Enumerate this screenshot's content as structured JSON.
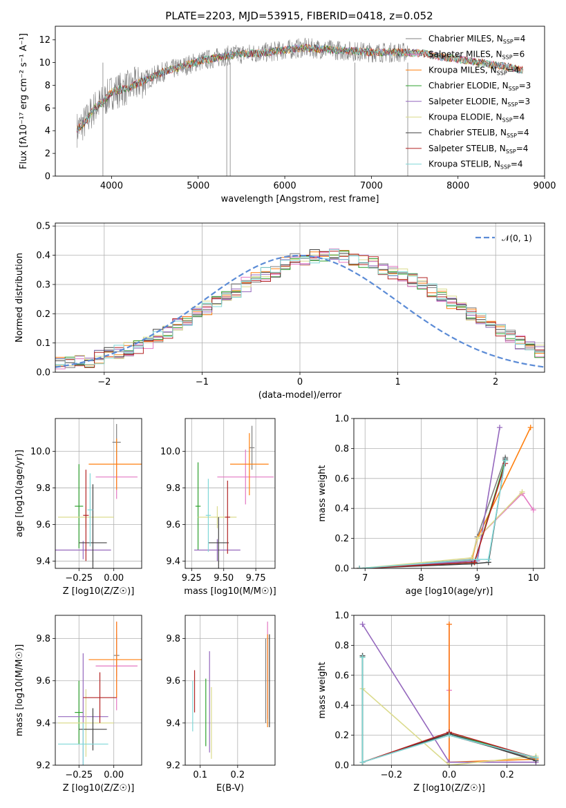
{
  "figure_title": "PLATE=2203, MJD=53915, FIBERID=0418, z=0.052",
  "colors": [
    "#7f7f7f",
    "#e377c2",
    "#ff7f0e",
    "#2ca02c",
    "#9467bd",
    "#dbdb8d",
    "#404040",
    "#b22222",
    "#7fd7d7"
  ],
  "chart_data": [
    {
      "id": "spectrum",
      "type": "line",
      "title": "PLATE=2203, MJD=53915, FIBERID=0418, z=0.052",
      "xlabel": "wavelength [Angstrom, rest frame]",
      "ylabel": "Flux [fλ10⁻¹⁷ erg cm⁻² s⁻¹ A⁻¹]",
      "xlim": [
        3350,
        9000
      ],
      "ylim": [
        0,
        13.2
      ],
      "xticks": [
        "4000",
        "5000",
        "6000",
        "7000",
        "8000",
        "9000"
      ],
      "yticks": [
        "0",
        "2",
        "4",
        "6",
        "8",
        "10",
        "12"
      ],
      "grid": false,
      "legend_position": "right",
      "continuum_x": [
        3600,
        3700,
        3800,
        3900,
        4000,
        4200,
        4400,
        4600,
        4800,
        5000,
        5200,
        5400,
        5600,
        5800,
        6000,
        6200,
        6400,
        6600,
        6800,
        7000,
        7200,
        7400,
        7600,
        7800,
        8000,
        8200,
        8400,
        8600,
        8750
      ],
      "continuum_y": [
        4.1,
        4.8,
        6.0,
        6.5,
        7.4,
        7.8,
        8.5,
        9.2,
        9.6,
        10.1,
        10.4,
        10.7,
        10.8,
        10.9,
        11.1,
        11.3,
        11.2,
        11.1,
        11.0,
        10.9,
        10.9,
        10.9,
        10.8,
        10.5,
        10.3,
        10.1,
        9.8,
        9.6,
        9.3
      ],
      "series": [
        {
          "name": "Chabrier MILES, N_SSP=4",
          "label": "Chabrier MILES, N",
          "nssp": 4
        },
        {
          "name": "Salpeter MILES, N_SSP=6",
          "label": "Salpeter MILES, N",
          "nssp": 6
        },
        {
          "name": "Kroupa MILES, N_SSP=4",
          "label": "Kroupa MILES, N",
          "nssp": 4
        },
        {
          "name": "Chabrier ELODIE, N_SSP=3",
          "label": "Chabrier ELODIE, N",
          "nssp": 3
        },
        {
          "name": "Salpeter ELODIE, N_SSP=3",
          "label": "Salpeter ELODIE, N",
          "nssp": 3
        },
        {
          "name": "Kroupa ELODIE, N_SSP=4",
          "label": "Kroupa ELODIE, N",
          "nssp": 4
        },
        {
          "name": "Chabrier STELIB, N_SSP=4",
          "label": "Chabrier STELIB, N",
          "nssp": 4
        },
        {
          "name": "Salpeter STELIB, N_SSP=4",
          "label": "Salpeter STELIB, N",
          "nssp": 4
        },
        {
          "name": "Kroupa STELIB, N_SSP=4",
          "label": "Kroupa STELIB, N",
          "nssp": 4
        }
      ]
    },
    {
      "id": "residuals",
      "type": "line",
      "xlabel": "(data-model)/error",
      "ylabel": "Normed distribution",
      "xlim": [
        -2.5,
        2.5
      ],
      "ylim": [
        0,
        0.51
      ],
      "xticks": [
        "−2",
        "−1",
        "0",
        "1",
        "2"
      ],
      "yticks": [
        "0.0",
        "0.1",
        "0.2",
        "0.3",
        "0.4",
        "0.5"
      ],
      "grid": true,
      "legend_position": "top-right",
      "gaussian_label": "𝒩(0, 1)",
      "bin_width": 0.1,
      "bin_start": -2.5,
      "hist_values": [
        0.031,
        0.031,
        0.035,
        0.04,
        0.05,
        0.06,
        0.068,
        0.08,
        0.086,
        0.102,
        0.125,
        0.14,
        0.16,
        0.18,
        0.2,
        0.22,
        0.245,
        0.26,
        0.28,
        0.3,
        0.32,
        0.335,
        0.35,
        0.37,
        0.385,
        0.39,
        0.395,
        0.4,
        0.41,
        0.4,
        0.39,
        0.38,
        0.37,
        0.355,
        0.34,
        0.33,
        0.315,
        0.3,
        0.28,
        0.262,
        0.24,
        0.22,
        0.2,
        0.18,
        0.16,
        0.14,
        0.122,
        0.1,
        0.085,
        0.07,
        0.058,
        0.05,
        0.045,
        0.04,
        0.035,
        0.03,
        0.025,
        0.02,
        0.018,
        0.015
      ]
    },
    {
      "id": "age_vs_z",
      "type": "scatter",
      "xlabel": "Z [log10(Z/Z☉)]",
      "ylabel": "age  [log10(age/yr)]",
      "xlim": [
        -0.42,
        0.2
      ],
      "ylim": [
        9.36,
        10.18
      ],
      "xticks": [
        "−0.25",
        "0.00"
      ],
      "yticks": [
        "9.4",
        "9.6",
        "9.8",
        "10.0"
      ],
      "grid": true,
      "points": [
        {
          "x": 0.02,
          "y": 10.05,
          "xerr": 0.03,
          "yerr": 0.1
        },
        {
          "x": 0.02,
          "y": 9.86,
          "xerr": 0.15,
          "yerr": 0.12
        },
        {
          "x": 0.02,
          "y": 9.93,
          "xerr": 0.2,
          "yerr": 0.14
        },
        {
          "x": -0.25,
          "y": 9.7,
          "xerr": 0.03,
          "yerr": 0.23
        },
        {
          "x": -0.22,
          "y": 9.46,
          "xerr": 0.2,
          "yerr": 0.05
        },
        {
          "x": -0.2,
          "y": 9.64,
          "xerr": 0.2,
          "yerr": 0.06
        },
        {
          "x": -0.15,
          "y": 9.5,
          "xerr": 0.1,
          "yerr": 0.32
        },
        {
          "x": -0.2,
          "y": 9.65,
          "xerr": 0.02,
          "yerr": 0.25
        },
        {
          "x": -0.17,
          "y": 9.68,
          "xerr": 0.02,
          "yerr": 0.2
        }
      ]
    },
    {
      "id": "age_vs_mass",
      "type": "scatter",
      "xlabel": "mass [log10(M/M☉)]",
      "ylabel": "",
      "xlim": [
        9.2,
        9.9
      ],
      "ylim": [
        9.36,
        10.18
      ],
      "xticks": [
        "9.25",
        "9.50",
        "9.75"
      ],
      "yticks": [
        "9.4",
        "9.6",
        "9.8",
        "10.0"
      ],
      "grid": true,
      "points": [
        {
          "x": 9.72,
          "y": 10.02,
          "xerr": 0.02,
          "yerr": 0.12
        },
        {
          "x": 9.67,
          "y": 9.86,
          "xerr": 0.22,
          "yerr": 0.15
        },
        {
          "x": 9.7,
          "y": 9.93,
          "xerr": 0.15,
          "yerr": 0.17
        },
        {
          "x": 9.3,
          "y": 9.7,
          "xerr": 0.02,
          "yerr": 0.24
        },
        {
          "x": 9.45,
          "y": 9.46,
          "xerr": 0.18,
          "yerr": 0.06
        },
        {
          "x": 9.45,
          "y": 9.64,
          "xerr": 0.15,
          "yerr": 0.06
        },
        {
          "x": 9.46,
          "y": 9.5,
          "xerr": 0.08,
          "yerr": 0.14
        },
        {
          "x": 9.53,
          "y": 9.64,
          "xerr": 0.02,
          "yerr": 0.2
        },
        {
          "x": 9.38,
          "y": 9.65,
          "xerr": 0.02,
          "yerr": 0.2
        }
      ]
    },
    {
      "id": "massweight_vs_age",
      "type": "line",
      "xlabel": "age  [log10(age/yr)]",
      "ylabel": "mass weight",
      "xlim": [
        6.8,
        10.2
      ],
      "ylim": [
        0,
        1
      ],
      "xticks": [
        "7",
        "8",
        "9",
        "10"
      ],
      "yticks": [
        "0.0",
        "0.2",
        "0.4",
        "0.6",
        "0.8",
        "1.0"
      ],
      "grid": true,
      "series": [
        {
          "x": [
            6.9,
            8.9,
            9.0,
            9.5
          ],
          "y": [
            0.0,
            0.06,
            0.21,
            0.74
          ]
        },
        {
          "x": [
            6.9,
            8.9,
            9.0,
            9.8,
            10.0
          ],
          "y": [
            0.0,
            0.05,
            0.2,
            0.5,
            0.39
          ]
        },
        {
          "x": [
            6.9,
            8.9,
            9.0,
            9.95
          ],
          "y": [
            0.0,
            0.05,
            0.2,
            0.94
          ]
        },
        {
          "x": [
            6.9,
            8.95,
            9.5
          ],
          "y": [
            0.0,
            0.04,
            0.72
          ]
        },
        {
          "x": [
            6.9,
            9.0,
            9.4
          ],
          "y": [
            0.0,
            0.05,
            0.94
          ]
        },
        {
          "x": [
            6.9,
            8.9,
            9.0,
            9.8
          ],
          "y": [
            0.0,
            0.07,
            0.2,
            0.51
          ]
        },
        {
          "x": [
            6.9,
            8.9,
            9.2,
            9.5
          ],
          "y": [
            0.0,
            0.03,
            0.04,
            0.73
          ]
        },
        {
          "x": [
            6.9,
            8.95,
            9.5
          ],
          "y": [
            0.0,
            0.04,
            0.7
          ]
        },
        {
          "x": [
            6.9,
            9.0,
            9.2,
            9.5
          ],
          "y": [
            0.0,
            0.06,
            0.06,
            0.72
          ]
        }
      ]
    },
    {
      "id": "mass_vs_z",
      "type": "scatter",
      "xlabel": "Z [log10(Z/Z☉)]",
      "ylabel": "mass [log10(M/M☉)]",
      "xlim": [
        -0.42,
        0.2
      ],
      "ylim": [
        9.2,
        9.91
      ],
      "xticks": [
        "−0.25",
        "0.00"
      ],
      "yticks": [
        "9.2",
        "9.4",
        "9.6",
        "9.8"
      ],
      "grid": true,
      "points": [
        {
          "x": 0.02,
          "y": 9.72,
          "xerr": 0.02,
          "yerr": 0.1
        },
        {
          "x": 0.02,
          "y": 9.67,
          "xerr": 0.15,
          "yerr": 0.21
        },
        {
          "x": 0.02,
          "y": 9.7,
          "xerr": 0.2,
          "yerr": 0.18
        },
        {
          "x": -0.25,
          "y": 9.45,
          "xerr": 0.03,
          "yerr": 0.15
        },
        {
          "x": -0.22,
          "y": 9.43,
          "xerr": 0.18,
          "yerr": 0.3
        },
        {
          "x": -0.2,
          "y": 9.4,
          "xerr": 0.2,
          "yerr": 0.16
        },
        {
          "x": -0.15,
          "y": 9.37,
          "xerr": 0.1,
          "yerr": 0.1
        },
        {
          "x": -0.1,
          "y": 9.52,
          "xerr": 0.12,
          "yerr": 0.12
        },
        {
          "x": -0.22,
          "y": 9.3,
          "xerr": 0.18,
          "yerr": 0.1
        }
      ]
    },
    {
      "id": "mass_vs_ebv",
      "type": "scatter",
      "xlabel": "E(B-V)",
      "ylabel": "",
      "xlim": [
        0.06,
        0.3
      ],
      "ylim": [
        9.2,
        9.91
      ],
      "xticks": [
        "0.1",
        "0.2"
      ],
      "yticks": [
        "9.2",
        "9.4",
        "9.6",
        "9.8"
      ],
      "grid": true,
      "points": [
        {
          "x": 0.275,
          "y": 9.6,
          "xerr": 0.0,
          "yerr": 0.2
        },
        {
          "x": 0.28,
          "y": 9.65,
          "xerr": 0.0,
          "yerr": 0.23
        },
        {
          "x": 0.28,
          "y": 9.6,
          "xerr": 0.0,
          "yerr": 0.22
        },
        {
          "x": 0.115,
          "y": 9.45,
          "xerr": 0.0,
          "yerr": 0.16
        },
        {
          "x": 0.125,
          "y": 9.5,
          "xerr": 0.0,
          "yerr": 0.24
        },
        {
          "x": 0.13,
          "y": 9.4,
          "xerr": 0.0,
          "yerr": 0.17
        },
        {
          "x": 0.285,
          "y": 9.6,
          "xerr": 0.0,
          "yerr": 0.22
        },
        {
          "x": 0.085,
          "y": 9.55,
          "xerr": 0.0,
          "yerr": 0.1
        },
        {
          "x": 0.08,
          "y": 9.48,
          "xerr": 0.0,
          "yerr": 0.12
        }
      ]
    },
    {
      "id": "massweight_vs_z",
      "type": "line",
      "xlabel": "Z [log10(Z/Z☉)]",
      "ylabel": "mass weight",
      "xlim": [
        -0.33,
        0.33
      ],
      "ylim": [
        0,
        1
      ],
      "xticks": [
        "−0.2",
        "0.0",
        "0.2"
      ],
      "yticks": [
        "0.0",
        "0.2",
        "0.4",
        "0.6",
        "0.8",
        "1.0"
      ],
      "grid": true,
      "series": [
        {
          "x": [
            -0.3,
            -0.3,
            0.0,
            0.3
          ],
          "y": [
            0.73,
            0.02,
            0.2,
            0.04
          ]
        },
        {
          "x": [
            0.0,
            0.0,
            0.0,
            0.3
          ],
          "y": [
            0.94,
            0.5,
            0.02,
            0.02
          ]
        },
        {
          "x": [
            0.0,
            0.0,
            0.0,
            0.3
          ],
          "y": [
            0.94,
            0.2,
            0.02,
            0.04
          ]
        },
        {
          "x": [
            -0.3,
            -0.3,
            0.0,
            0.3
          ],
          "y": [
            0.72,
            0.02,
            0.21,
            0.05
          ]
        },
        {
          "x": [
            -0.3,
            0.0,
            0.3
          ],
          "y": [
            0.94,
            0.02,
            0.02
          ]
        },
        {
          "x": [
            -0.3,
            0.0,
            0.3
          ],
          "y": [
            0.51,
            0.0,
            0.06
          ]
        },
        {
          "x": [
            -0.3,
            -0.3,
            0.0,
            0.3
          ],
          "y": [
            0.73,
            0.02,
            0.21,
            0.03
          ]
        },
        {
          "x": [
            -0.3,
            0.0,
            0.3
          ],
          "y": [
            0.02,
            0.22,
            0.05
          ]
        },
        {
          "x": [
            -0.3,
            -0.3,
            0.0,
            0.3
          ],
          "y": [
            0.72,
            0.02,
            0.2,
            0.05
          ]
        }
      ]
    }
  ]
}
